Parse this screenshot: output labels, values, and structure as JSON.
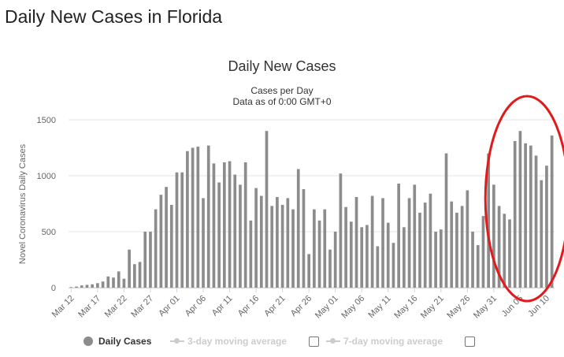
{
  "page": {
    "heading": "Daily New Cases in Florida"
  },
  "legend": {
    "items": [
      {
        "label": "Daily Cases",
        "active": true
      },
      {
        "label": "3-day moving average",
        "active": false
      },
      {
        "label": "7-day moving average",
        "active": false
      }
    ]
  },
  "colors": {
    "bar": "#8c8c8c",
    "grid": "#e6e6e6",
    "annotation": "#e31a1c",
    "axis_text": "#666666"
  },
  "chart_data": {
    "type": "bar",
    "title": "Daily New Cases",
    "subtitle": [
      "Cases per Day",
      "Data as of 0:00 GMT+0"
    ],
    "xlabel": "",
    "ylabel": "Novel Coronavirus Daily Cases",
    "ylim": [
      0,
      1500
    ],
    "yticks": [
      0,
      500,
      1000,
      1500
    ],
    "grid": true,
    "legend_position": "bottom",
    "xtick_labels": [
      "Mar 12",
      "Mar 17",
      "Mar 22",
      "Mar 27",
      "Apr 01",
      "Apr 06",
      "Apr 11",
      "Apr 16",
      "Apr 21",
      "Apr 26",
      "May 01",
      "May 06",
      "May 11",
      "May 16",
      "May 21",
      "May 26",
      "May 31",
      "Jun 05",
      "Jun 10"
    ],
    "xtick_every": 5,
    "series": [
      {
        "name": "Daily Cases",
        "values": [
          5,
          10,
          20,
          25,
          30,
          40,
          55,
          100,
          90,
          145,
          80,
          340,
          210,
          230,
          500,
          500,
          700,
          830,
          900,
          740,
          1030,
          1030,
          1220,
          1250,
          1260,
          800,
          1270,
          1110,
          940,
          1120,
          1130,
          1010,
          920,
          1120,
          600,
          890,
          820,
          1400,
          730,
          810,
          740,
          800,
          700,
          1060,
          880,
          300,
          700,
          600,
          700,
          340,
          500,
          1020,
          720,
          590,
          810,
          540,
          560,
          820,
          370,
          800,
          580,
          400,
          930,
          540,
          800,
          920,
          670,
          760,
          840,
          500,
          520,
          1200,
          770,
          670,
          730,
          870,
          500,
          380,
          640,
          1200,
          920,
          730,
          660,
          610,
          1310,
          1400,
          1290,
          1270,
          1180,
          960,
          1090,
          1360
        ]
      }
    ],
    "annotation": {
      "shape": "ellipse",
      "label": "",
      "from_category": "Jun 01",
      "to_category": "Jun 10"
    }
  }
}
